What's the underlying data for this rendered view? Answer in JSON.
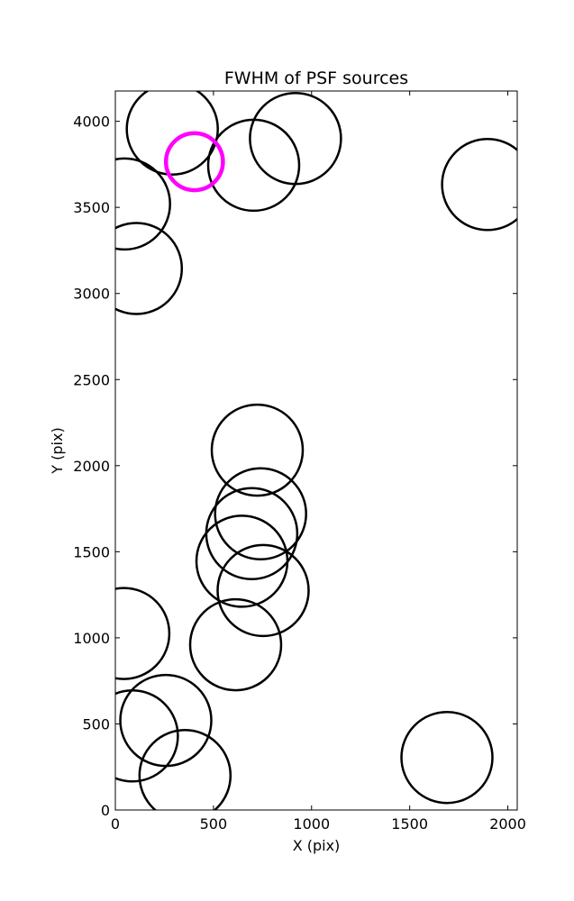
{
  "chart_data": {
    "type": "scatter",
    "title": "FWHM of PSF sources",
    "xlabel": "X (pix)",
    "ylabel": "Y (pix)",
    "xlim": [
      0,
      2048
    ],
    "ylim": [
      0,
      4176
    ],
    "xticks": [
      0,
      500,
      1000,
      1500,
      2000
    ],
    "yticks": [
      0,
      500,
      1000,
      1500,
      2000,
      2500,
      3000,
      3500,
      4000
    ],
    "grid": false,
    "marker": "circle (radius proportional to FWHM)",
    "colors": {
      "default": "#000000",
      "highlight": "#ff00ff"
    },
    "points": [
      {
        "x": 290,
        "y": 3955,
        "r": 232,
        "highlight": false
      },
      {
        "x": 705,
        "y": 3745,
        "r": 232,
        "highlight": false
      },
      {
        "x": 918,
        "y": 3900,
        "r": 232,
        "highlight": false
      },
      {
        "x": 1897,
        "y": 3633,
        "r": 232,
        "highlight": false
      },
      {
        "x": 47,
        "y": 3520,
        "r": 232,
        "highlight": false
      },
      {
        "x": 107,
        "y": 3145,
        "r": 232,
        "highlight": false
      },
      {
        "x": 723,
        "y": 2090,
        "r": 232,
        "highlight": false
      },
      {
        "x": 740,
        "y": 1720,
        "r": 232,
        "highlight": false
      },
      {
        "x": 695,
        "y": 1605,
        "r": 232,
        "highlight": false
      },
      {
        "x": 645,
        "y": 1445,
        "r": 232,
        "highlight": false
      },
      {
        "x": 753,
        "y": 1275,
        "r": 232,
        "highlight": false
      },
      {
        "x": 43,
        "y": 1025,
        "r": 232,
        "highlight": false
      },
      {
        "x": 613,
        "y": 960,
        "r": 232,
        "highlight": false
      },
      {
        "x": 87,
        "y": 430,
        "r": 232,
        "highlight": false
      },
      {
        "x": 257,
        "y": 520,
        "r": 232,
        "highlight": false
      },
      {
        "x": 355,
        "y": 200,
        "r": 232,
        "highlight": false
      },
      {
        "x": 1690,
        "y": 305,
        "r": 232,
        "highlight": false
      },
      {
        "x": 403,
        "y": 3765,
        "r": 145,
        "highlight": true
      }
    ]
  }
}
